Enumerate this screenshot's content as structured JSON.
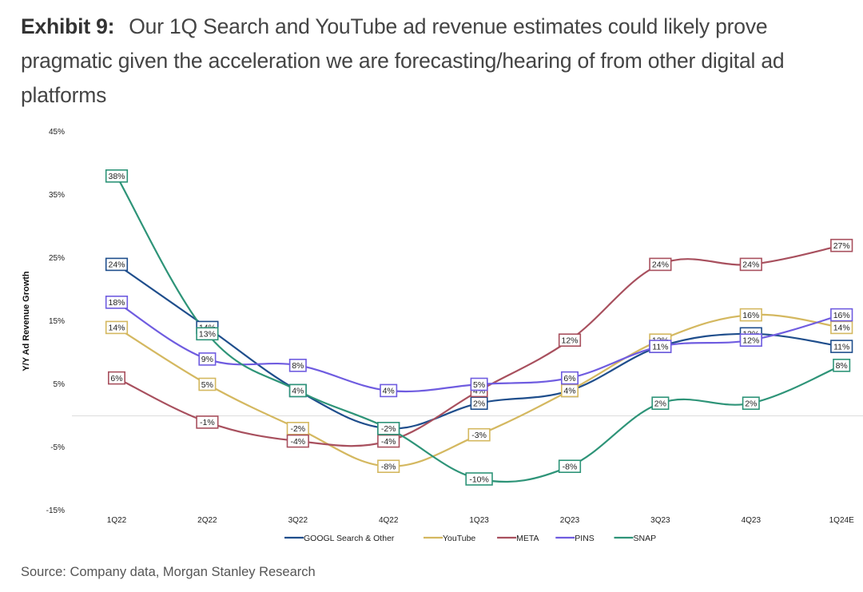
{
  "header": {
    "exhibit_label": "Exhibit 9:",
    "title": "Our 1Q Search and YouTube ad revenue estimates could likely prove pragmatic given the acceleration we are forecasting/hearing of from other digital ad platforms"
  },
  "source": "Source: Company data, Morgan Stanley Research",
  "chart_data": {
    "type": "line",
    "title": "Our 1Q Search and YouTube ad revenue estimates could likely prove pragmatic given the acceleration we are forecasting/hearing of from other digital ad platforms",
    "xlabel": "",
    "ylabel": "Y/Y Ad Revenue Growth",
    "categories": [
      "1Q22",
      "2Q22",
      "3Q22",
      "4Q22",
      "1Q23",
      "2Q23",
      "3Q23",
      "4Q23",
      "1Q24E"
    ],
    "ylim": [
      -15,
      45
    ],
    "yticks": [
      45,
      35,
      25,
      15,
      5,
      -5,
      -15
    ],
    "ytick_labels": [
      "45%",
      "35%",
      "25%",
      "15%",
      "5%",
      "-5%",
      "-15%"
    ],
    "grid": false,
    "zero_line": true,
    "legend_position": "bottom",
    "series": [
      {
        "name": "GOOGL Search & Other",
        "color": "#1f4e8c",
        "values": [
          24,
          14,
          4,
          -2,
          2,
          4,
          11,
          13,
          11
        ],
        "labels": [
          "24%",
          "14%",
          "4%",
          "-2%",
          "2%",
          "4%",
          "11%",
          "13%",
          "11%"
        ]
      },
      {
        "name": "YouTube",
        "color": "#d4b860",
        "values": [
          14,
          5,
          -2,
          -8,
          -3,
          4,
          12,
          16,
          14
        ],
        "labels": [
          "14%",
          "5%",
          "-2%",
          "-8%",
          "-3%",
          "4%",
          "12%",
          "16%",
          "14%"
        ]
      },
      {
        "name": "META",
        "color": "#a8505e",
        "values": [
          6,
          -1,
          -4,
          -4,
          4,
          12,
          24,
          24,
          27
        ],
        "labels": [
          "6%",
          "-1%",
          "-4%",
          "-4%",
          "4%",
          "12%",
          "24%",
          "24%",
          "27%"
        ]
      },
      {
        "name": "PINS",
        "color": "#6f5ce0",
        "values": [
          18,
          9,
          8,
          4,
          5,
          6,
          11,
          12,
          16
        ],
        "labels": [
          "18%",
          "9%",
          "8%",
          "4%",
          "5%",
          "6%",
          "11%",
          "12%",
          "16%"
        ]
      },
      {
        "name": "SNAP",
        "color": "#2e9478",
        "values": [
          38,
          13,
          4,
          -2,
          -10,
          -8,
          2,
          2,
          8
        ],
        "labels": [
          "38%",
          "13%",
          "4%",
          "-2%",
          "-10%",
          "-8%",
          "2%",
          "2%",
          "8%"
        ]
      }
    ]
  }
}
